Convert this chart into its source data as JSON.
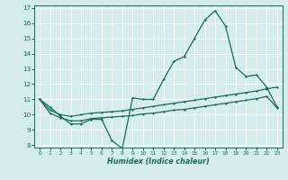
{
  "xlabel": "Humidex (Indice chaleur)",
  "x": [
    0,
    1,
    2,
    3,
    4,
    5,
    6,
    7,
    8,
    9,
    10,
    11,
    12,
    13,
    14,
    15,
    16,
    17,
    18,
    19,
    20,
    21,
    22,
    23
  ],
  "line_main": [
    11.0,
    10.5,
    9.9,
    9.4,
    9.4,
    9.7,
    9.7,
    8.3,
    7.8,
    11.1,
    11.0,
    11.0,
    12.3,
    13.5,
    13.8,
    15.0,
    16.2,
    16.8,
    15.8,
    13.1,
    12.5,
    12.6,
    11.8,
    10.5
  ],
  "line_upper": [
    11.0,
    10.3,
    10.0,
    9.9,
    10.0,
    10.1,
    10.15,
    10.2,
    10.25,
    10.35,
    10.45,
    10.55,
    10.65,
    10.75,
    10.85,
    10.95,
    11.05,
    11.15,
    11.25,
    11.35,
    11.45,
    11.55,
    11.7,
    11.8
  ],
  "line_lower": [
    11.0,
    10.1,
    9.8,
    9.6,
    9.6,
    9.75,
    9.8,
    9.85,
    9.9,
    9.95,
    10.05,
    10.1,
    10.2,
    10.3,
    10.35,
    10.45,
    10.55,
    10.65,
    10.75,
    10.85,
    10.95,
    11.05,
    11.2,
    10.45
  ],
  "line_color": "#1a6b5a",
  "bg_color": "#d4ecec",
  "grid_color": "#b8d8d8",
  "ylim": [
    8,
    17
  ],
  "xlim": [
    -0.5,
    23.5
  ],
  "yticks": [
    8,
    9,
    10,
    11,
    12,
    13,
    14,
    15,
    16,
    17
  ],
  "xticks": [
    0,
    1,
    2,
    3,
    4,
    5,
    6,
    7,
    8,
    9,
    10,
    11,
    12,
    13,
    14,
    15,
    16,
    17,
    18,
    19,
    20,
    21,
    22,
    23
  ]
}
